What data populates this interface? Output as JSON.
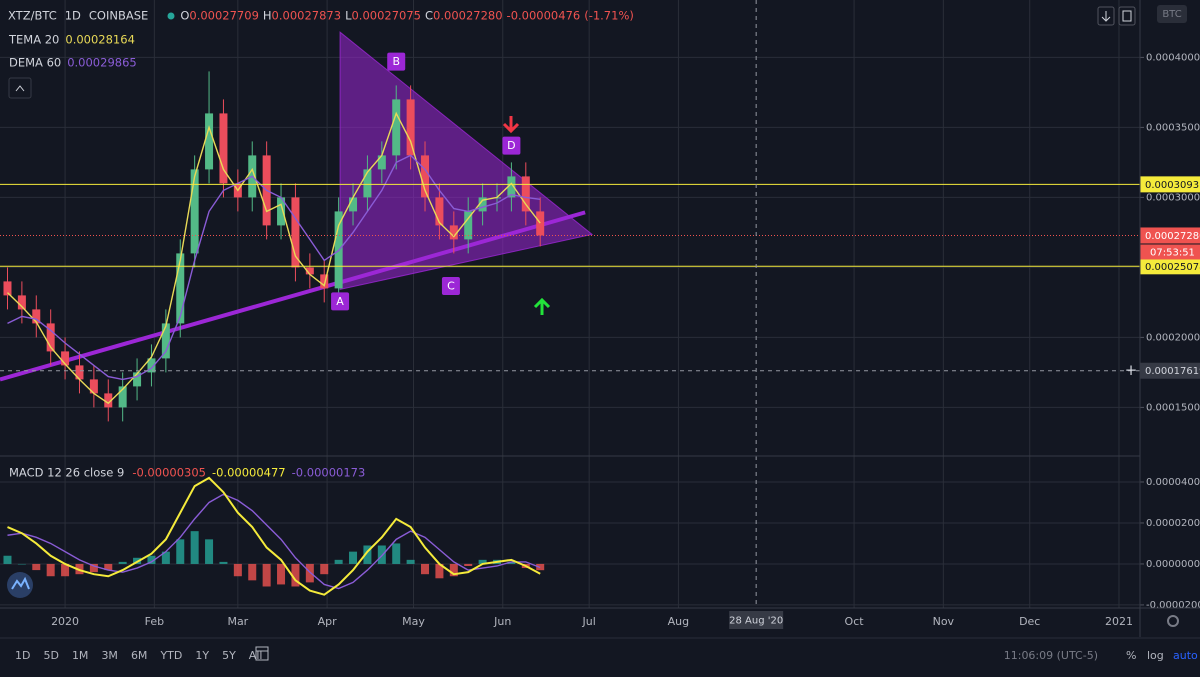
{
  "chart_data": {
    "type": "candlestick",
    "symbol": "XTZ/BTC",
    "interval": "1D",
    "exchange": "COINBASE",
    "ohlc_prefixes": [
      "O",
      "H",
      "L",
      "C"
    ],
    "ohlc_header": {
      "open": 0.00027709,
      "high": 0.00027873,
      "low": 0.00027075,
      "close": {
        "value": 0.0002728,
        "label": "0.00027280"
      },
      "change": -4.76e-06,
      "change_pct": {
        "value": -1.71,
        "label": "(-1.71%)"
      }
    },
    "x": [
      -20,
      -15,
      -10,
      -5,
      0,
      5,
      10,
      15,
      20,
      25,
      30,
      35,
      40,
      45,
      50,
      55,
      60,
      65,
      70,
      75,
      80,
      85,
      90,
      95,
      100,
      105,
      110,
      115,
      120,
      125,
      130,
      135,
      140,
      145,
      150,
      155,
      160,
      165
    ],
    "candles": {
      "open": [
        0.00024,
        0.00023,
        0.00022,
        0.00021,
        0.00019,
        0.00018,
        0.00017,
        0.00016,
        0.00015,
        0.000165,
        0.000175,
        0.000185,
        0.00021,
        0.00026,
        0.00032,
        0.00036,
        0.00031,
        0.0003,
        0.00033,
        0.00028,
        0.0003,
        0.00025,
        0.000245,
        0.000235,
        0.00029,
        0.0003,
        0.00032,
        0.00033,
        0.00037,
        0.00033,
        0.0003,
        0.00028,
        0.00027,
        0.00029,
        0.0003,
        0.0003,
        0.000315,
        0.00029
      ],
      "high": [
        0.00025,
        0.00024,
        0.00023,
        0.00022,
        0.0002,
        0.00019,
        0.00018,
        0.00017,
        0.000175,
        0.000185,
        0.000195,
        0.00022,
        0.00027,
        0.00033,
        0.00039,
        0.00037,
        0.00032,
        0.00034,
        0.00034,
        0.00031,
        0.00031,
        0.00026,
        0.000255,
        0.0003,
        0.00031,
        0.00033,
        0.00034,
        0.00038,
        0.00038,
        0.00034,
        0.00031,
        0.00029,
        0.0003,
        0.00031,
        0.00031,
        0.000325,
        0.000325,
        0.0003
      ],
      "low": [
        0.00022,
        0.00021,
        0.0002,
        0.00018,
        0.00017,
        0.00016,
        0.00015,
        0.00014,
        0.00014,
        0.000155,
        0.000165,
        0.000175,
        0.0002,
        0.00025,
        0.00031,
        0.0003,
        0.00029,
        0.00029,
        0.00027,
        0.00027,
        0.00024,
        0.000235,
        0.000225,
        0.000225,
        0.00028,
        0.00029,
        0.00031,
        0.00032,
        0.00032,
        0.00029,
        0.00027,
        0.00026,
        0.00026,
        0.00028,
        0.00029,
        0.00029,
        0.00028,
        0.000265
      ],
      "close": [
        0.00023,
        0.00022,
        0.00021,
        0.00019,
        0.00018,
        0.00017,
        0.00016,
        0.00015,
        0.000165,
        0.000175,
        0.000185,
        0.00021,
        0.00026,
        0.00032,
        0.00036,
        0.00031,
        0.0003,
        0.00033,
        0.00028,
        0.0003,
        0.00025,
        0.000245,
        0.000235,
        0.00029,
        0.0003,
        0.00032,
        0.00033,
        0.00037,
        0.00033,
        0.0003,
        0.00028,
        0.00027,
        0.00029,
        0.0003,
        0.0003,
        0.000315,
        0.00029,
        0.0002728
      ]
    },
    "up_color": "#53b987",
    "down_color": "#eb4d5c",
    "overlays": [
      {
        "name": "TEMA 20",
        "color": "#e8d957",
        "values": [
          0.000232,
          0.000222,
          0.000211,
          0.000193,
          0.000181,
          0.00017,
          0.00016,
          0.000153,
          0.000163,
          0.000174,
          0.000186,
          0.000208,
          0.000255,
          0.000315,
          0.00035,
          0.00032,
          0.000305,
          0.00032,
          0.00029,
          0.000295,
          0.000258,
          0.000245,
          0.000237,
          0.00028,
          0.0003,
          0.000318,
          0.00033,
          0.00036,
          0.00034,
          0.000305,
          0.000282,
          0.000272,
          0.000285,
          0.000298,
          0.0003,
          0.00031,
          0.000295,
          0.00028164
        ]
      },
      {
        "name": "DEMA 60",
        "color": "#8a5cd6",
        "values": [
          0.00021,
          0.000215,
          0.000213,
          0.000205,
          0.000196,
          0.000188,
          0.00018,
          0.000172,
          0.00017,
          0.000172,
          0.000178,
          0.00019,
          0.000215,
          0.000255,
          0.00029,
          0.000305,
          0.00031,
          0.000315,
          0.000305,
          0.0003,
          0.000285,
          0.00027,
          0.000255,
          0.000262,
          0.000275,
          0.00029,
          0.000305,
          0.000325,
          0.00033,
          0.00032,
          0.000305,
          0.000292,
          0.00029,
          0.000293,
          0.000296,
          0.000302,
          0.0003,
          0.00029865
        ]
      }
    ],
    "xlim": [
      -22.6,
      373.3
    ],
    "xticks": [
      {
        "value": 0,
        "label": "2020"
      },
      {
        "value": 31,
        "label": "Feb"
      },
      {
        "value": 60,
        "label": "Mar"
      },
      {
        "value": 91,
        "label": "Apr"
      },
      {
        "value": 121,
        "label": "May"
      },
      {
        "value": 152,
        "label": "Jun"
      },
      {
        "value": 182,
        "label": "Jul"
      },
      {
        "value": 213,
        "label": "Aug"
      },
      {
        "value": 274,
        "label": "Oct"
      },
      {
        "value": 305,
        "label": "Nov"
      },
      {
        "value": 335,
        "label": "Dec"
      },
      {
        "value": 366,
        "label": "2021"
      }
    ],
    "ylim": [
      0.000116,
      0.000441
    ],
    "yticks": [
      {
        "value": 0.00015,
        "label": "0.00015000"
      },
      {
        "value": 0.0002,
        "label": "0.00020000"
      },
      {
        "value": 0.00025,
        "label": "0.00025000"
      },
      {
        "value": 0.0003,
        "label": "0.00030000"
      },
      {
        "value": 0.00035,
        "label": "0.00035000"
      },
      {
        "value": 0.0004,
        "label": "0.00040000"
      }
    ],
    "grid": true,
    "levels": [
      {
        "value": 0.00030931,
        "color": "#f5eb3b"
      },
      {
        "value": 0.00025078,
        "color": "#f5eb3b"
      }
    ],
    "last_price": {
      "value": 0.0002728,
      "label": "0.00027280",
      "countdown": "07:53:51",
      "color": "#ef5350"
    },
    "crosshair": {
      "x": {
        "value": 240,
        "label": "28 Aug '20"
      },
      "y": 0.00017619
    },
    "pattern": {
      "color": "#9c27d6",
      "triangle": [
        {
          "x": 95.5,
          "y": 0.000418
        },
        {
          "x": 183,
          "y": 0.0002736
        },
        {
          "x": 95.5,
          "y": 0.0002343
        }
      ],
      "trendline": [
        {
          "x": -22.6,
          "y": 0.00017
        },
        {
          "x": 180.6,
          "y": 0.0002893
        }
      ],
      "points": [
        {
          "label": "A",
          "x": 95.5,
          "y": 0.000235
        },
        {
          "label": "B",
          "x": 115,
          "y": 0.000382
        },
        {
          "label": "C",
          "x": 134,
          "y": 0.000246
        },
        {
          "label": "D",
          "x": 155,
          "y": 0.000322
        }
      ]
    },
    "macd": {
      "name": "MACD 12 26 close 9",
      "ylim": [
        -2.15e-05,
        5.17e-05
      ],
      "yticks": [
        {
          "value": -2e-05,
          "label": "-0.00002000"
        },
        {
          "value": 0,
          "label": "0.00000000"
        },
        {
          "value": 2e-05,
          "label": "0.00002000"
        },
        {
          "value": 4e-05,
          "label": "0.00004000"
        }
      ],
      "histogram": {
        "up_color": "#26a69a",
        "down_color": "#ef5350",
        "values": [
          4e-06,
          0,
          -3e-06,
          -6e-06,
          -6e-06,
          -5e-06,
          -4e-06,
          -3e-06,
          1e-06,
          3e-06,
          4e-06,
          6e-06,
          1.2e-05,
          1.6e-05,
          1.2e-05,
          1e-06,
          -6e-06,
          -8e-06,
          -1.1e-05,
          -1e-05,
          -1.1e-05,
          -9e-06,
          -5e-06,
          2e-06,
          6e-06,
          9e-06,
          9e-06,
          1e-05,
          2e-06,
          -5e-06,
          -7e-06,
          -6e-06,
          -1e-06,
          2e-06,
          2e-06,
          1e-06,
          -2e-06,
          -3.05e-06
        ]
      },
      "macd_line": {
        "color": "#f5eb3b",
        "values": [
          1.8e-05,
          1.5e-05,
          1e-05,
          4e-06,
          0,
          -3e-06,
          -5e-06,
          -6e-06,
          -3e-06,
          1e-06,
          5e-06,
          1.2e-05,
          2.5e-05,
          3.8e-05,
          4.2e-05,
          3.5e-05,
          2.5e-05,
          1.8e-05,
          8e-06,
          2e-06,
          -8e-06,
          -1.3e-05,
          -1.5e-05,
          -1e-05,
          -3e-06,
          6e-06,
          1.3e-05,
          2.2e-05,
          1.8e-05,
          8e-06,
          0,
          -5e-06,
          -4e-06,
          0,
          1e-06,
          2e-06,
          -1e-06,
          -4.77e-06
        ]
      },
      "signal_line": {
        "color": "#8a5cd6",
        "values": [
          1.4e-05,
          1.5e-05,
          1.3e-05,
          1e-05,
          6e-06,
          2e-06,
          -1e-06,
          -3e-06,
          -4e-06,
          -2e-06,
          1e-06,
          6e-06,
          1.3e-05,
          2.2e-05,
          3e-05,
          3.4e-05,
          3.1e-05,
          2.6e-05,
          1.9e-05,
          1.2e-05,
          3e-06,
          -4e-06,
          -1e-05,
          -1.2e-05,
          -9e-06,
          -3e-06,
          4e-06,
          1.2e-05,
          1.6e-05,
          1.3e-05,
          7e-06,
          1e-06,
          -3e-06,
          -2e-06,
          -1e-06,
          1e-06,
          1e-06,
          -1.73e-06
        ]
      }
    },
    "symbol_badge": "BTC",
    "toolbar": {
      "ranges": [
        "1D",
        "5D",
        "1M",
        "3M",
        "6M",
        "YTD",
        "1Y",
        "5Y",
        "All"
      ],
      "clock": "11:06:09 (UTC-5)",
      "options": [
        "%",
        "log",
        "auto"
      ]
    }
  }
}
